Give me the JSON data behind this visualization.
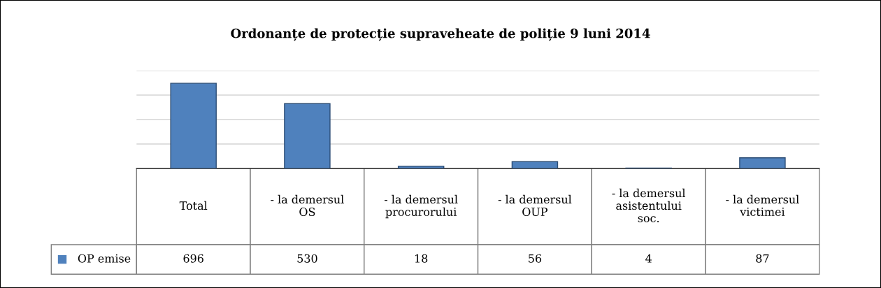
{
  "chart_data": {
    "type": "bar",
    "title": "Ordonanțe de protecție supraveheate de poliție 9 luni 2014",
    "categories": [
      "Total",
      "- la demersul\nOS",
      "- la demersul\nprocurorului",
      "- la demersul\nOUP",
      "- la demersul\nasistentului\nsoc.",
      "- la demersul\nvictimei"
    ],
    "series": [
      {
        "name": "OP emise",
        "color": "#4f81bd",
        "values": [
          696,
          530,
          18,
          56,
          4,
          87
        ]
      }
    ],
    "data_labels": true,
    "ylim": [
      0,
      800
    ],
    "yticks": [
      {
        "value": 0,
        "label": null
      },
      {
        "value": 200,
        "label": null
      },
      {
        "value": 400,
        "label": null
      },
      {
        "value": 600,
        "label": null
      },
      {
        "value": 800,
        "label": null
      }
    ],
    "grid": "y",
    "legend": "bottom left"
  }
}
